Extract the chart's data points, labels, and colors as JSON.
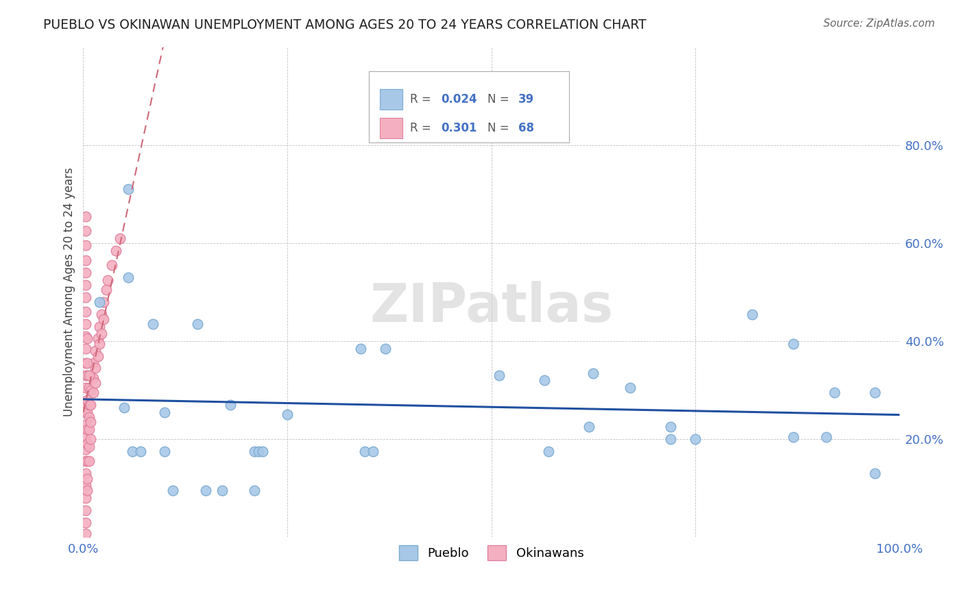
{
  "title": "PUEBLO VS OKINAWAN UNEMPLOYMENT AMONG AGES 20 TO 24 YEARS CORRELATION CHART",
  "source": "Source: ZipAtlas.com",
  "ylabel": "Unemployment Among Ages 20 to 24 years",
  "xlim": [
    0.0,
    1.0
  ],
  "ylim": [
    0.0,
    1.0
  ],
  "ytick_vals": [
    0.0,
    0.2,
    0.4,
    0.6,
    0.8
  ],
  "ytick_labels": [
    "",
    "20.0%",
    "40.0%",
    "60.0%",
    "80.0%"
  ],
  "xtick_vals": [
    0.0,
    0.25,
    0.5,
    0.75,
    1.0
  ],
  "xtick_labels": [
    "0.0%",
    "",
    "",
    "",
    "100.0%"
  ],
  "pueblo_color": "#a8c8e8",
  "pueblo_edge": "#7aaad0",
  "okinawan_color": "#f4b0c0",
  "okinawan_edge": "#e080a0",
  "pueblo_line_color": "#2050a0",
  "okinawan_line_color": "#d06878",
  "watermark": "ZIPatlas",
  "pueblo_pts": [
    [
      0.02,
      0.48
    ],
    [
      0.055,
      0.71
    ],
    [
      0.055,
      0.53
    ],
    [
      0.085,
      0.435
    ],
    [
      0.14,
      0.435
    ],
    [
      0.18,
      0.27
    ],
    [
      0.21,
      0.175
    ],
    [
      0.215,
      0.175
    ],
    [
      0.22,
      0.175
    ],
    [
      0.25,
      0.25
    ],
    [
      0.34,
      0.385
    ],
    [
      0.37,
      0.385
    ],
    [
      0.345,
      0.175
    ],
    [
      0.355,
      0.175
    ],
    [
      0.51,
      0.33
    ],
    [
      0.565,
      0.32
    ],
    [
      0.57,
      0.175
    ],
    [
      0.625,
      0.335
    ],
    [
      0.67,
      0.305
    ],
    [
      0.72,
      0.225
    ],
    [
      0.82,
      0.455
    ],
    [
      0.87,
      0.395
    ],
    [
      0.87,
      0.205
    ],
    [
      0.91,
      0.205
    ],
    [
      0.92,
      0.295
    ],
    [
      0.97,
      0.295
    ],
    [
      0.97,
      0.13
    ],
    [
      0.05,
      0.265
    ],
    [
      0.06,
      0.175
    ],
    [
      0.07,
      0.175
    ],
    [
      0.1,
      0.175
    ],
    [
      0.1,
      0.255
    ],
    [
      0.11,
      0.095
    ],
    [
      0.15,
      0.095
    ],
    [
      0.17,
      0.095
    ],
    [
      0.21,
      0.095
    ],
    [
      0.62,
      0.225
    ],
    [
      0.72,
      0.2
    ],
    [
      0.75,
      0.2
    ]
  ],
  "okinawan_pts": [
    [
      0.003,
      0.385
    ],
    [
      0.003,
      0.355
    ],
    [
      0.003,
      0.33
    ],
    [
      0.003,
      0.305
    ],
    [
      0.003,
      0.275
    ],
    [
      0.003,
      0.255
    ],
    [
      0.003,
      0.23
    ],
    [
      0.003,
      0.205
    ],
    [
      0.003,
      0.18
    ],
    [
      0.003,
      0.155
    ],
    [
      0.003,
      0.13
    ],
    [
      0.003,
      0.105
    ],
    [
      0.003,
      0.08
    ],
    [
      0.003,
      0.055
    ],
    [
      0.003,
      0.03
    ],
    [
      0.003,
      0.008
    ],
    [
      0.005,
      0.28
    ],
    [
      0.005,
      0.255
    ],
    [
      0.005,
      0.22
    ],
    [
      0.005,
      0.19
    ],
    [
      0.005,
      0.155
    ],
    [
      0.005,
      0.12
    ],
    [
      0.005,
      0.095
    ],
    [
      0.007,
      0.305
    ],
    [
      0.007,
      0.27
    ],
    [
      0.007,
      0.245
    ],
    [
      0.007,
      0.22
    ],
    [
      0.007,
      0.185
    ],
    [
      0.007,
      0.155
    ],
    [
      0.009,
      0.33
    ],
    [
      0.009,
      0.3
    ],
    [
      0.009,
      0.27
    ],
    [
      0.009,
      0.235
    ],
    [
      0.009,
      0.2
    ],
    [
      0.012,
      0.355
    ],
    [
      0.012,
      0.325
    ],
    [
      0.012,
      0.295
    ],
    [
      0.015,
      0.38
    ],
    [
      0.015,
      0.345
    ],
    [
      0.015,
      0.315
    ],
    [
      0.018,
      0.405
    ],
    [
      0.018,
      0.37
    ],
    [
      0.02,
      0.43
    ],
    [
      0.02,
      0.395
    ],
    [
      0.022,
      0.455
    ],
    [
      0.022,
      0.415
    ],
    [
      0.025,
      0.48
    ],
    [
      0.025,
      0.445
    ],
    [
      0.028,
      0.505
    ],
    [
      0.03,
      0.525
    ],
    [
      0.035,
      0.555
    ],
    [
      0.04,
      0.585
    ],
    [
      0.045,
      0.61
    ],
    [
      0.003,
      0.435
    ],
    [
      0.003,
      0.46
    ],
    [
      0.003,
      0.41
    ],
    [
      0.005,
      0.33
    ],
    [
      0.005,
      0.355
    ],
    [
      0.007,
      0.33
    ],
    [
      0.005,
      0.405
    ],
    [
      0.003,
      0.49
    ],
    [
      0.003,
      0.515
    ],
    [
      0.003,
      0.54
    ],
    [
      0.003,
      0.565
    ],
    [
      0.003,
      0.595
    ],
    [
      0.003,
      0.625
    ],
    [
      0.003,
      0.655
    ]
  ]
}
